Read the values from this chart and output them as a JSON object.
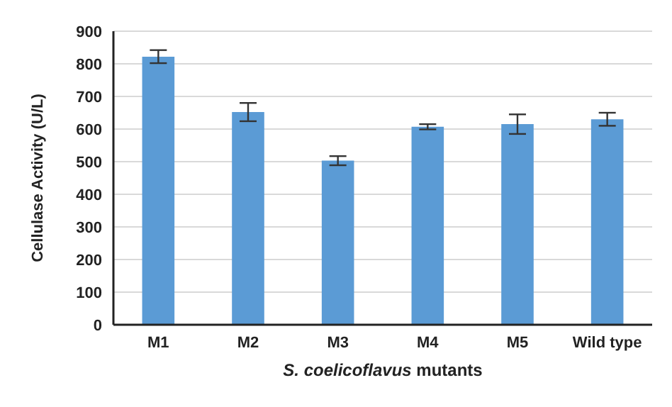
{
  "chart_data": {
    "type": "bar",
    "xlabel": "S. coelicoflavus mutants",
    "ylabel": "Cellulase Activity (U/L)",
    "categories": [
      "M1",
      "M2",
      "M3",
      "M4",
      "M5",
      "Wild type"
    ],
    "values": [
      822,
      652,
      503,
      607,
      615,
      630
    ],
    "errors": [
      20,
      28,
      14,
      8,
      30,
      20
    ],
    "color": "#5b9bd5",
    "ylim": [
      0,
      900
    ],
    "yticks": [
      0,
      100,
      200,
      300,
      400,
      500,
      600,
      700,
      800,
      900
    ],
    "grid": "y"
  }
}
